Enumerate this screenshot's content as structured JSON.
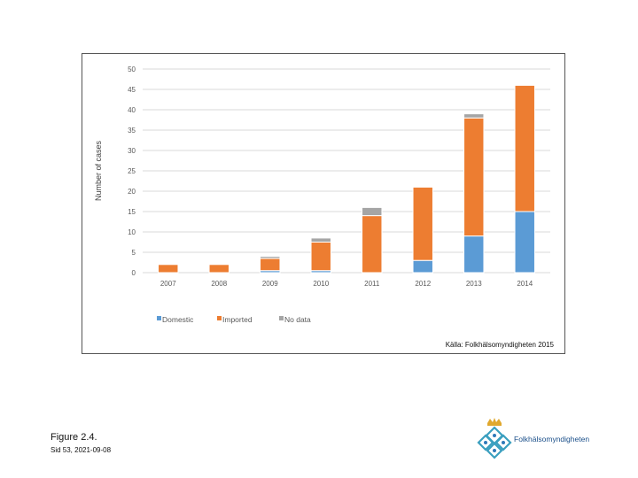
{
  "chart_data": {
    "type": "bar",
    "stacked": true,
    "categories": [
      "2007",
      "2008",
      "2009",
      "2010",
      "2011",
      "2012",
      "2013",
      "2014"
    ],
    "series": [
      {
        "name": "Domestic",
        "color": "#5b9bd5",
        "values": [
          0,
          0,
          0.5,
          0.5,
          0,
          3,
          9,
          15
        ]
      },
      {
        "name": "Imported",
        "color": "#ed7d31",
        "values": [
          2,
          2,
          3,
          7,
          14,
          18,
          29,
          31
        ]
      },
      {
        "name": "No data",
        "color": "#a5a5a5",
        "values": [
          0,
          0,
          0.5,
          1,
          2,
          0,
          1,
          0
        ]
      }
    ],
    "ylabel": "Number of cases",
    "xlabel": "",
    "ylim": [
      0,
      50
    ],
    "yticks": [
      0,
      5,
      10,
      15,
      20,
      25,
      30,
      35,
      40,
      45,
      50
    ],
    "grid": true,
    "legend_position": "bottom-left",
    "source_note": "Källa: Folkhälsomyndigheten 2015"
  },
  "figure": {
    "label": "Figure 2.4.",
    "date": "Sid 53, 2021-09-08"
  },
  "logo": {
    "text": "Folkhälsomyndigheten",
    "colors": {
      "blue": "#2f7ab9",
      "teal": "#3a9fbf",
      "gold": "#e0a82e"
    }
  }
}
